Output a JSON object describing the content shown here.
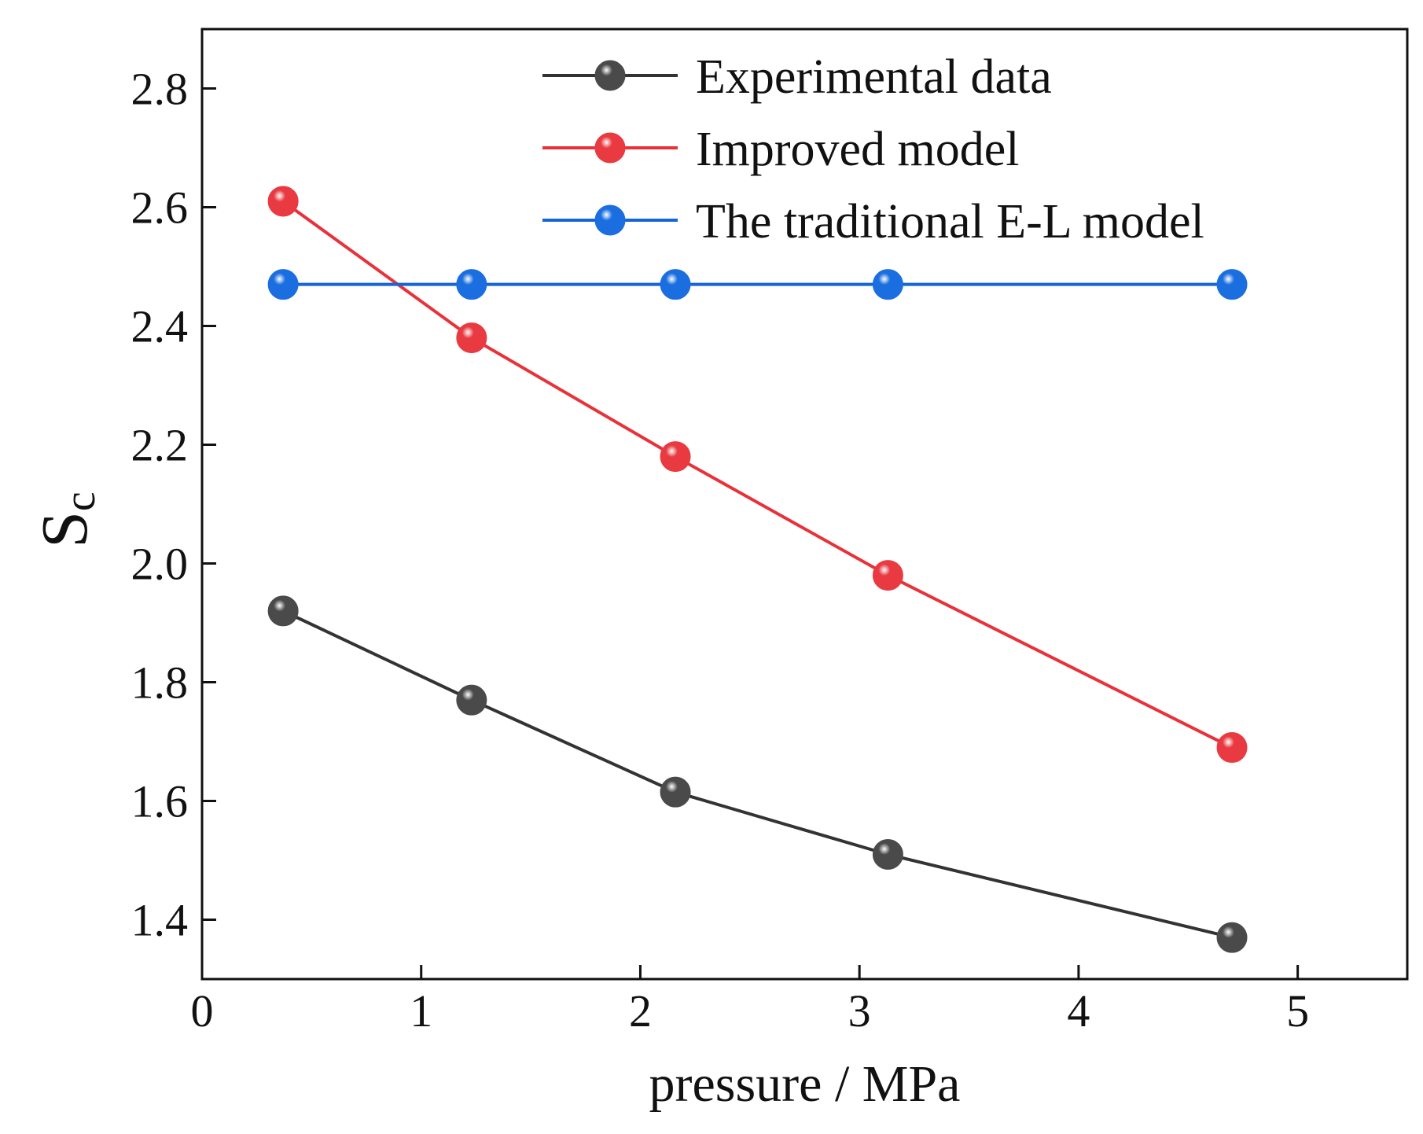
{
  "chart_data": {
    "type": "line",
    "title": "",
    "xlabel": "pressure / MPa",
    "ylabel": {
      "main": "S",
      "sub": "c"
    },
    "xlim": [
      0,
      5.5
    ],
    "ylim": [
      1.3,
      2.9
    ],
    "xticks": [
      0,
      1,
      2,
      3,
      4,
      5
    ],
    "yticks": [
      1.4,
      1.6,
      1.8,
      2.0,
      2.2,
      2.4,
      2.6,
      2.8
    ],
    "xtick_labels": [
      "0",
      "1",
      "2",
      "3",
      "4",
      "5"
    ],
    "ytick_labels": [
      "1.4",
      "1.6",
      "1.8",
      "2.0",
      "2.2",
      "2.4",
      "2.6",
      "2.8"
    ],
    "grid": false,
    "legend_position": "top-right",
    "x": [
      0.37,
      1.23,
      2.16,
      3.13,
      4.7
    ],
    "series": [
      {
        "name": "Experimental data",
        "color": "#333333",
        "marker_color": "#4a4a4a",
        "values": [
          1.92,
          1.77,
          1.615,
          1.51,
          1.37
        ]
      },
      {
        "name": "Improved model",
        "color": "#e8323a",
        "marker_color": "#e83a40",
        "values": [
          2.61,
          2.38,
          2.18,
          1.98,
          1.69
        ]
      },
      {
        "name": "The traditional E-L model",
        "color": "#1565d8",
        "marker_color": "#1a6ee0",
        "values": [
          2.47,
          2.47,
          2.47,
          2.47,
          2.47
        ]
      }
    ]
  }
}
